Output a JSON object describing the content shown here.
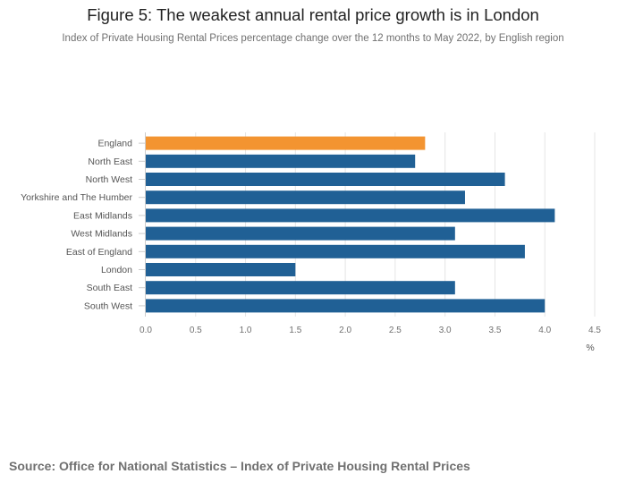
{
  "chart_data": {
    "type": "bar",
    "orientation": "horizontal",
    "title": "Figure 5: The weakest annual rental price growth is in London",
    "subtitle": "Index of Private Housing Rental Prices percentage change over the 12 months to May 2022, by English region",
    "categories": [
      "England",
      "North East",
      "North West",
      "Yorkshire and The Humber",
      "East Midlands",
      "West Midlands",
      "East of England",
      "London",
      "South East",
      "South West"
    ],
    "values": [
      2.8,
      2.7,
      3.6,
      3.2,
      4.1,
      3.1,
      3.8,
      1.5,
      3.1,
      4.0
    ],
    "highlight": "England",
    "xlim": [
      0,
      4.5
    ],
    "xticks": [
      "0.0",
      "0.5",
      "1.0",
      "1.5",
      "2.0",
      "2.5",
      "3.0",
      "3.5",
      "4.0",
      "4.5"
    ],
    "xlabel": "%",
    "grid": true,
    "colors": {
      "highlight": "#f39431",
      "default": "#206095",
      "grid": "#e5e5e5"
    }
  },
  "source": "Source: Office for National Statistics – Index of Private Housing Rental Prices"
}
